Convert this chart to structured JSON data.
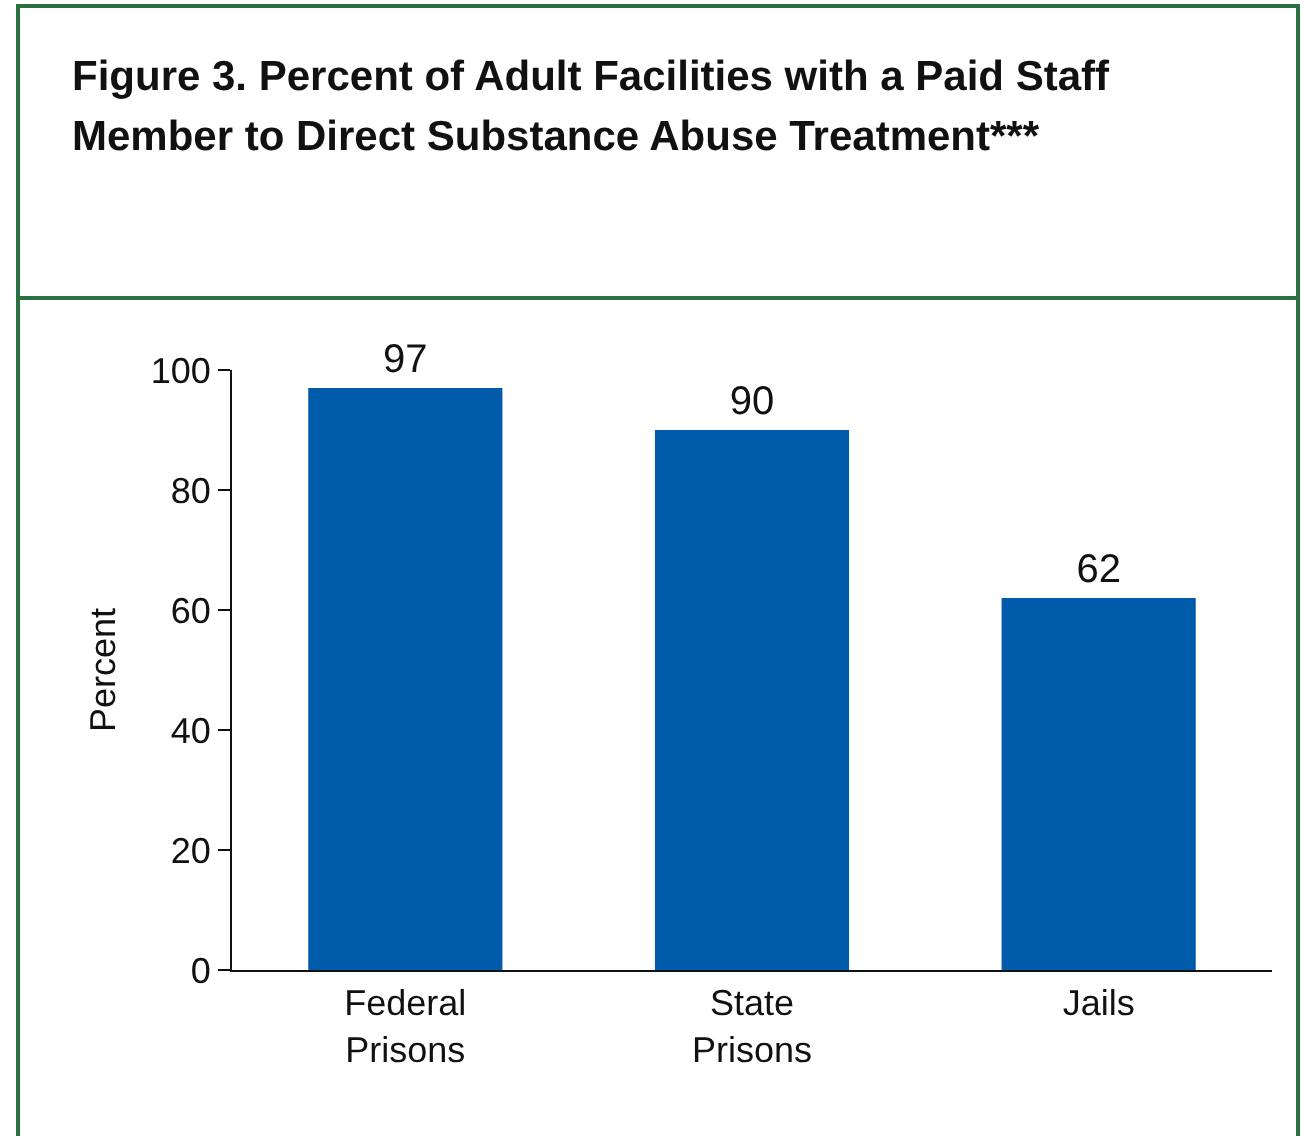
{
  "chart_data": {
    "type": "bar",
    "title": "Figure 3. Percent of Adult Facilities with a Paid Staff Member to Direct Substance Abuse Treatment***",
    "ylabel": "Percent",
    "categories": [
      "Federal Prisons",
      "State Prisons",
      "Jails"
    ],
    "values": [
      97,
      90,
      62
    ],
    "color": "#005baa",
    "ylim": [
      0,
      100
    ],
    "yticks": [
      0,
      20,
      40,
      60,
      80,
      100
    ],
    "data_labels": true,
    "grid": false
  }
}
